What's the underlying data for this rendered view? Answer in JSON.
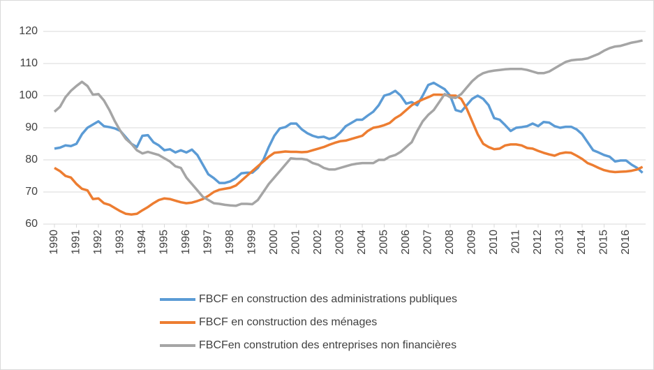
{
  "chart_data": {
    "type": "line",
    "categories": [
      "1990",
      null,
      null,
      null,
      "1991",
      null,
      null,
      null,
      "1992",
      null,
      null,
      null,
      "1993",
      null,
      null,
      null,
      "1994",
      null,
      null,
      null,
      "1995",
      null,
      null,
      null,
      "1996",
      null,
      null,
      null,
      "1997",
      null,
      null,
      null,
      "1998",
      null,
      null,
      null,
      "1999",
      null,
      null,
      null,
      "2000",
      null,
      null,
      null,
      "2001",
      null,
      null,
      null,
      "2002",
      null,
      null,
      null,
      "2003",
      null,
      null,
      null,
      "2004",
      null,
      null,
      null,
      "2005",
      null,
      null,
      null,
      "2006",
      null,
      null,
      null,
      "2007",
      null,
      null,
      null,
      "2008",
      null,
      null,
      null,
      "2009",
      null,
      null,
      null,
      "2010",
      null,
      null,
      null,
      "2011",
      null,
      null,
      null,
      "2012",
      null,
      null,
      null,
      "2013",
      null,
      null,
      null,
      "2014",
      null,
      null,
      null,
      "2015",
      null,
      null,
      null,
      "2016",
      null,
      null,
      null
    ],
    "series": [
      {
        "name": "FBCF en construction des administrations publiques",
        "color": "#5b9bd5",
        "values": [
          83.5,
          83.8,
          84.5,
          84.3,
          85.0,
          88,
          90,
          91,
          92,
          90.5,
          90.2,
          89.8,
          89,
          87,
          85,
          84,
          87.5,
          87.7,
          85.5,
          84.5,
          83,
          83.3,
          82.3,
          83,
          82.3,
          83.2,
          81.5,
          78.5,
          75.5,
          74.3,
          72.8,
          72.8,
          73.3,
          74.3,
          75.8,
          76.0,
          76.0,
          77.5,
          80,
          84,
          87.5,
          89.8,
          90.2,
          91.3,
          91.3,
          89.5,
          88.3,
          87.5,
          87.0,
          87.2,
          86.5,
          87.0,
          88.5,
          90.5,
          91.5,
          92.5,
          92.5,
          93.8,
          95,
          97,
          100,
          100.5,
          101.5,
          100,
          97.5,
          98,
          97,
          100,
          103.3,
          104,
          103,
          102,
          100,
          95.5,
          95,
          97,
          99,
          100,
          99,
          97,
          93,
          92.5,
          90.8,
          89,
          90,
          90.2,
          90.5,
          91.3,
          90.5,
          91.8,
          91.6,
          90.5,
          90,
          90.3,
          90.3,
          89.5,
          88,
          85.5,
          83,
          82.3,
          81.5,
          81,
          79.5,
          79.8,
          79.8,
          78.5,
          77.5,
          76
        ]
      },
      {
        "name": "FBCF en construction des ménages",
        "color": "#ed7d31",
        "values": [
          77.5,
          76.5,
          75,
          74.5,
          72.5,
          71,
          70.5,
          67.8,
          68,
          66.5,
          66,
          65,
          64,
          63.2,
          63,
          63.2,
          64.3,
          65.3,
          66.5,
          67.5,
          68,
          67.8,
          67.3,
          66.8,
          66.5,
          66.7,
          67.2,
          67.8,
          68.8,
          70,
          70.7,
          71,
          71.3,
          72,
          73.5,
          75,
          76.5,
          78,
          79.5,
          81,
          82.2,
          82.4,
          82.6,
          82.5,
          82.5,
          82.4,
          82.5,
          83,
          83.5,
          84,
          84.7,
          85.3,
          85.8,
          86,
          86.5,
          87,
          87.5,
          89,
          90,
          90.3,
          90.8,
          91.5,
          93,
          94,
          95.5,
          97,
          98,
          98.8,
          99.5,
          100.3,
          100.3,
          100.2,
          100,
          100,
          99,
          96,
          92,
          88,
          85,
          84,
          83.3,
          83.5,
          84.5,
          84.8,
          84.8,
          84.5,
          83.7,
          83.5,
          82.8,
          82.2,
          81.7,
          81.3,
          82,
          82.3,
          82.2,
          81.3,
          80.3,
          79,
          78.3,
          77.5,
          76.8,
          76.4,
          76.2,
          76.3,
          76.4,
          76.6,
          77,
          77.8
        ]
      },
      {
        "name": "FBCFen constrution des entreprises non financières",
        "color": "#a5a5a5",
        "values": [
          95,
          96.5,
          99.5,
          101.5,
          103,
          104.3,
          103,
          100.3,
          100.5,
          98.5,
          95.5,
          92,
          89,
          86.5,
          85,
          83,
          82,
          82.5,
          82,
          81.5,
          80.5,
          79.5,
          78,
          77.5,
          74.5,
          72.5,
          70.5,
          68.5,
          67.5,
          66.5,
          66.3,
          66,
          65.8,
          65.7,
          66.3,
          66.3,
          66.2,
          67.5,
          70,
          72.5,
          74.5,
          76.5,
          78.5,
          80.5,
          80.3,
          80.3,
          80,
          79,
          78.5,
          77.5,
          77,
          77,
          77.5,
          78,
          78.5,
          78.8,
          79,
          79,
          79,
          80,
          80,
          81,
          81.5,
          82.5,
          84,
          85.5,
          89,
          92,
          94,
          95.5,
          98,
          100.5,
          99.5,
          99.3,
          100.5,
          102.5,
          104.5,
          106,
          107,
          107.5,
          107.8,
          108,
          108.2,
          108.3,
          108.3,
          108.3,
          108,
          107.5,
          107,
          107,
          107.5,
          108.5,
          109.5,
          110.5,
          111,
          111.2,
          111.3,
          111.6,
          112.3,
          113,
          114,
          114.8,
          115.3,
          115.5,
          116,
          116.5,
          116.8,
          117.2
        ]
      }
    ],
    "ylim": [
      60,
      120
    ],
    "yticks": [
      60,
      70,
      80,
      90,
      100,
      110,
      120
    ],
    "grid": true,
    "legend": "bottom"
  }
}
